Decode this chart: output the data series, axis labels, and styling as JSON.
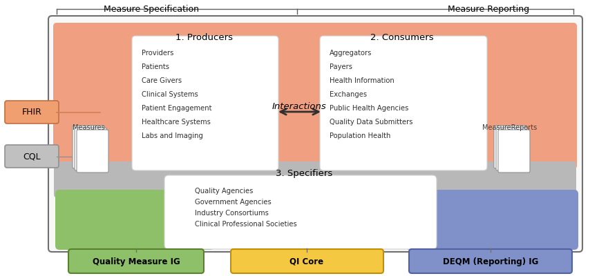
{
  "title_left": "Measure Specification",
  "title_right": "Measure Reporting",
  "producers_title": "1. Producers",
  "consumers_title": "2. Consumers",
  "specifiers_title": "3. Specifiers",
  "interactions_text": "Interactions",
  "fhir_label": "FHIR",
  "cql_label": "CQL",
  "measures_label": "Measures",
  "measure_reports_label": "MeasureReports",
  "producers_items": [
    "Providers",
    "Patients",
    "Care Givers",
    "Clinical Systems",
    "Patient Engagement",
    "Healthcare Systems",
    "Labs and Imaging"
  ],
  "consumers_items": [
    "Aggregators",
    "Payers",
    "Health Information",
    "Exchanges",
    "Public Health Agencies",
    "Quality Data Submitters",
    "Population Health"
  ],
  "specifiers_items": [
    "Quality Agencies",
    "Government Agencies",
    "Industry Consortiums",
    "Clinical Professional Societies"
  ],
  "bottom_labels": [
    "Quality Measure IG",
    "QI Core",
    "DEQM (Reporting) IG"
  ],
  "color_salmon": "#F0A080",
  "color_gray_band": "#B8B8B8",
  "color_green": "#8DC068",
  "color_yellow": "#F5C842",
  "color_blue": "#8090C8",
  "color_fhir_box": "#F0A070",
  "color_cql_box": "#C0C0C0",
  "outer_border": "#707070",
  "outer_bg": "#F8F8F8"
}
